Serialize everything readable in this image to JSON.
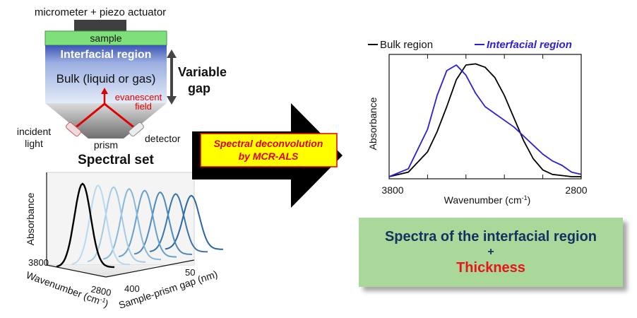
{
  "setup": {
    "actuator_label": "micrometer + piezo actuator",
    "sample_label": "sample",
    "interfacial_label": "Interfacial region",
    "bulk_label": "Bulk (liquid or gas)",
    "gap_label_line1": "Variable",
    "gap_label_line2": "gap",
    "evanescent_line1": "evanescent",
    "evanescent_line2": "field",
    "incident_line1": "incident",
    "incident_line2": "light",
    "prism_label": "prism",
    "detector_label": "detector"
  },
  "spectral_set": {
    "title": "Spectral set",
    "y_label": "Absorbance",
    "x_label": "Wavenumber (cm",
    "x_label_sup": "-1",
    "x_label_end": ")",
    "x_ticks": [
      "3800",
      "2800"
    ],
    "z_label": "Sample-prism gap (nm)",
    "z_ticks": [
      "400",
      "50"
    ],
    "colors": [
      "#000000",
      "#b9d9ee",
      "#a3cbe6",
      "#86b7dc",
      "#679fcd",
      "#4d89bd",
      "#3775ad",
      "#2a669f"
    ]
  },
  "arrow": {
    "line1": "Spectral deconvolution",
    "line2": "by MCR-ALS"
  },
  "result_chart": {
    "legend_bulk": "Bulk region",
    "legend_interfacial": "Interfacial region",
    "y_label": "Absorbance",
    "x_label": "Wavenumber (cm",
    "x_label_sup": "-1",
    "x_label_end": ")",
    "x_ticks": [
      "3800",
      "2800"
    ],
    "bulk_color": "#000000",
    "interfacial_color": "#2b1fd6"
  },
  "chart_data": {
    "type": "line",
    "xlim": [
      3800,
      2800
    ],
    "x": [
      3800,
      3700,
      3600,
      3550,
      3500,
      3450,
      3400,
      3350,
      3300,
      3250,
      3200,
      3150,
      3100,
      3050,
      3000,
      2950,
      2900,
      2850,
      2800
    ],
    "series": [
      {
        "name": "Bulk region",
        "values": [
          0.0,
          0.04,
          0.22,
          0.4,
          0.62,
          0.86,
          0.99,
          1.0,
          0.97,
          0.88,
          0.72,
          0.52,
          0.32,
          0.16,
          0.06,
          0.02,
          0.01,
          0.0,
          0.0
        ]
      },
      {
        "name": "Interfacial region",
        "values": [
          0.0,
          0.07,
          0.42,
          0.72,
          0.94,
          0.99,
          0.9,
          0.74,
          0.62,
          0.56,
          0.5,
          0.44,
          0.36,
          0.28,
          0.2,
          0.14,
          0.1,
          0.04,
          0.02
        ]
      }
    ]
  },
  "result": {
    "line1": "Spectra of the interfacial region",
    "line2": "+",
    "line3": "Thickness"
  }
}
